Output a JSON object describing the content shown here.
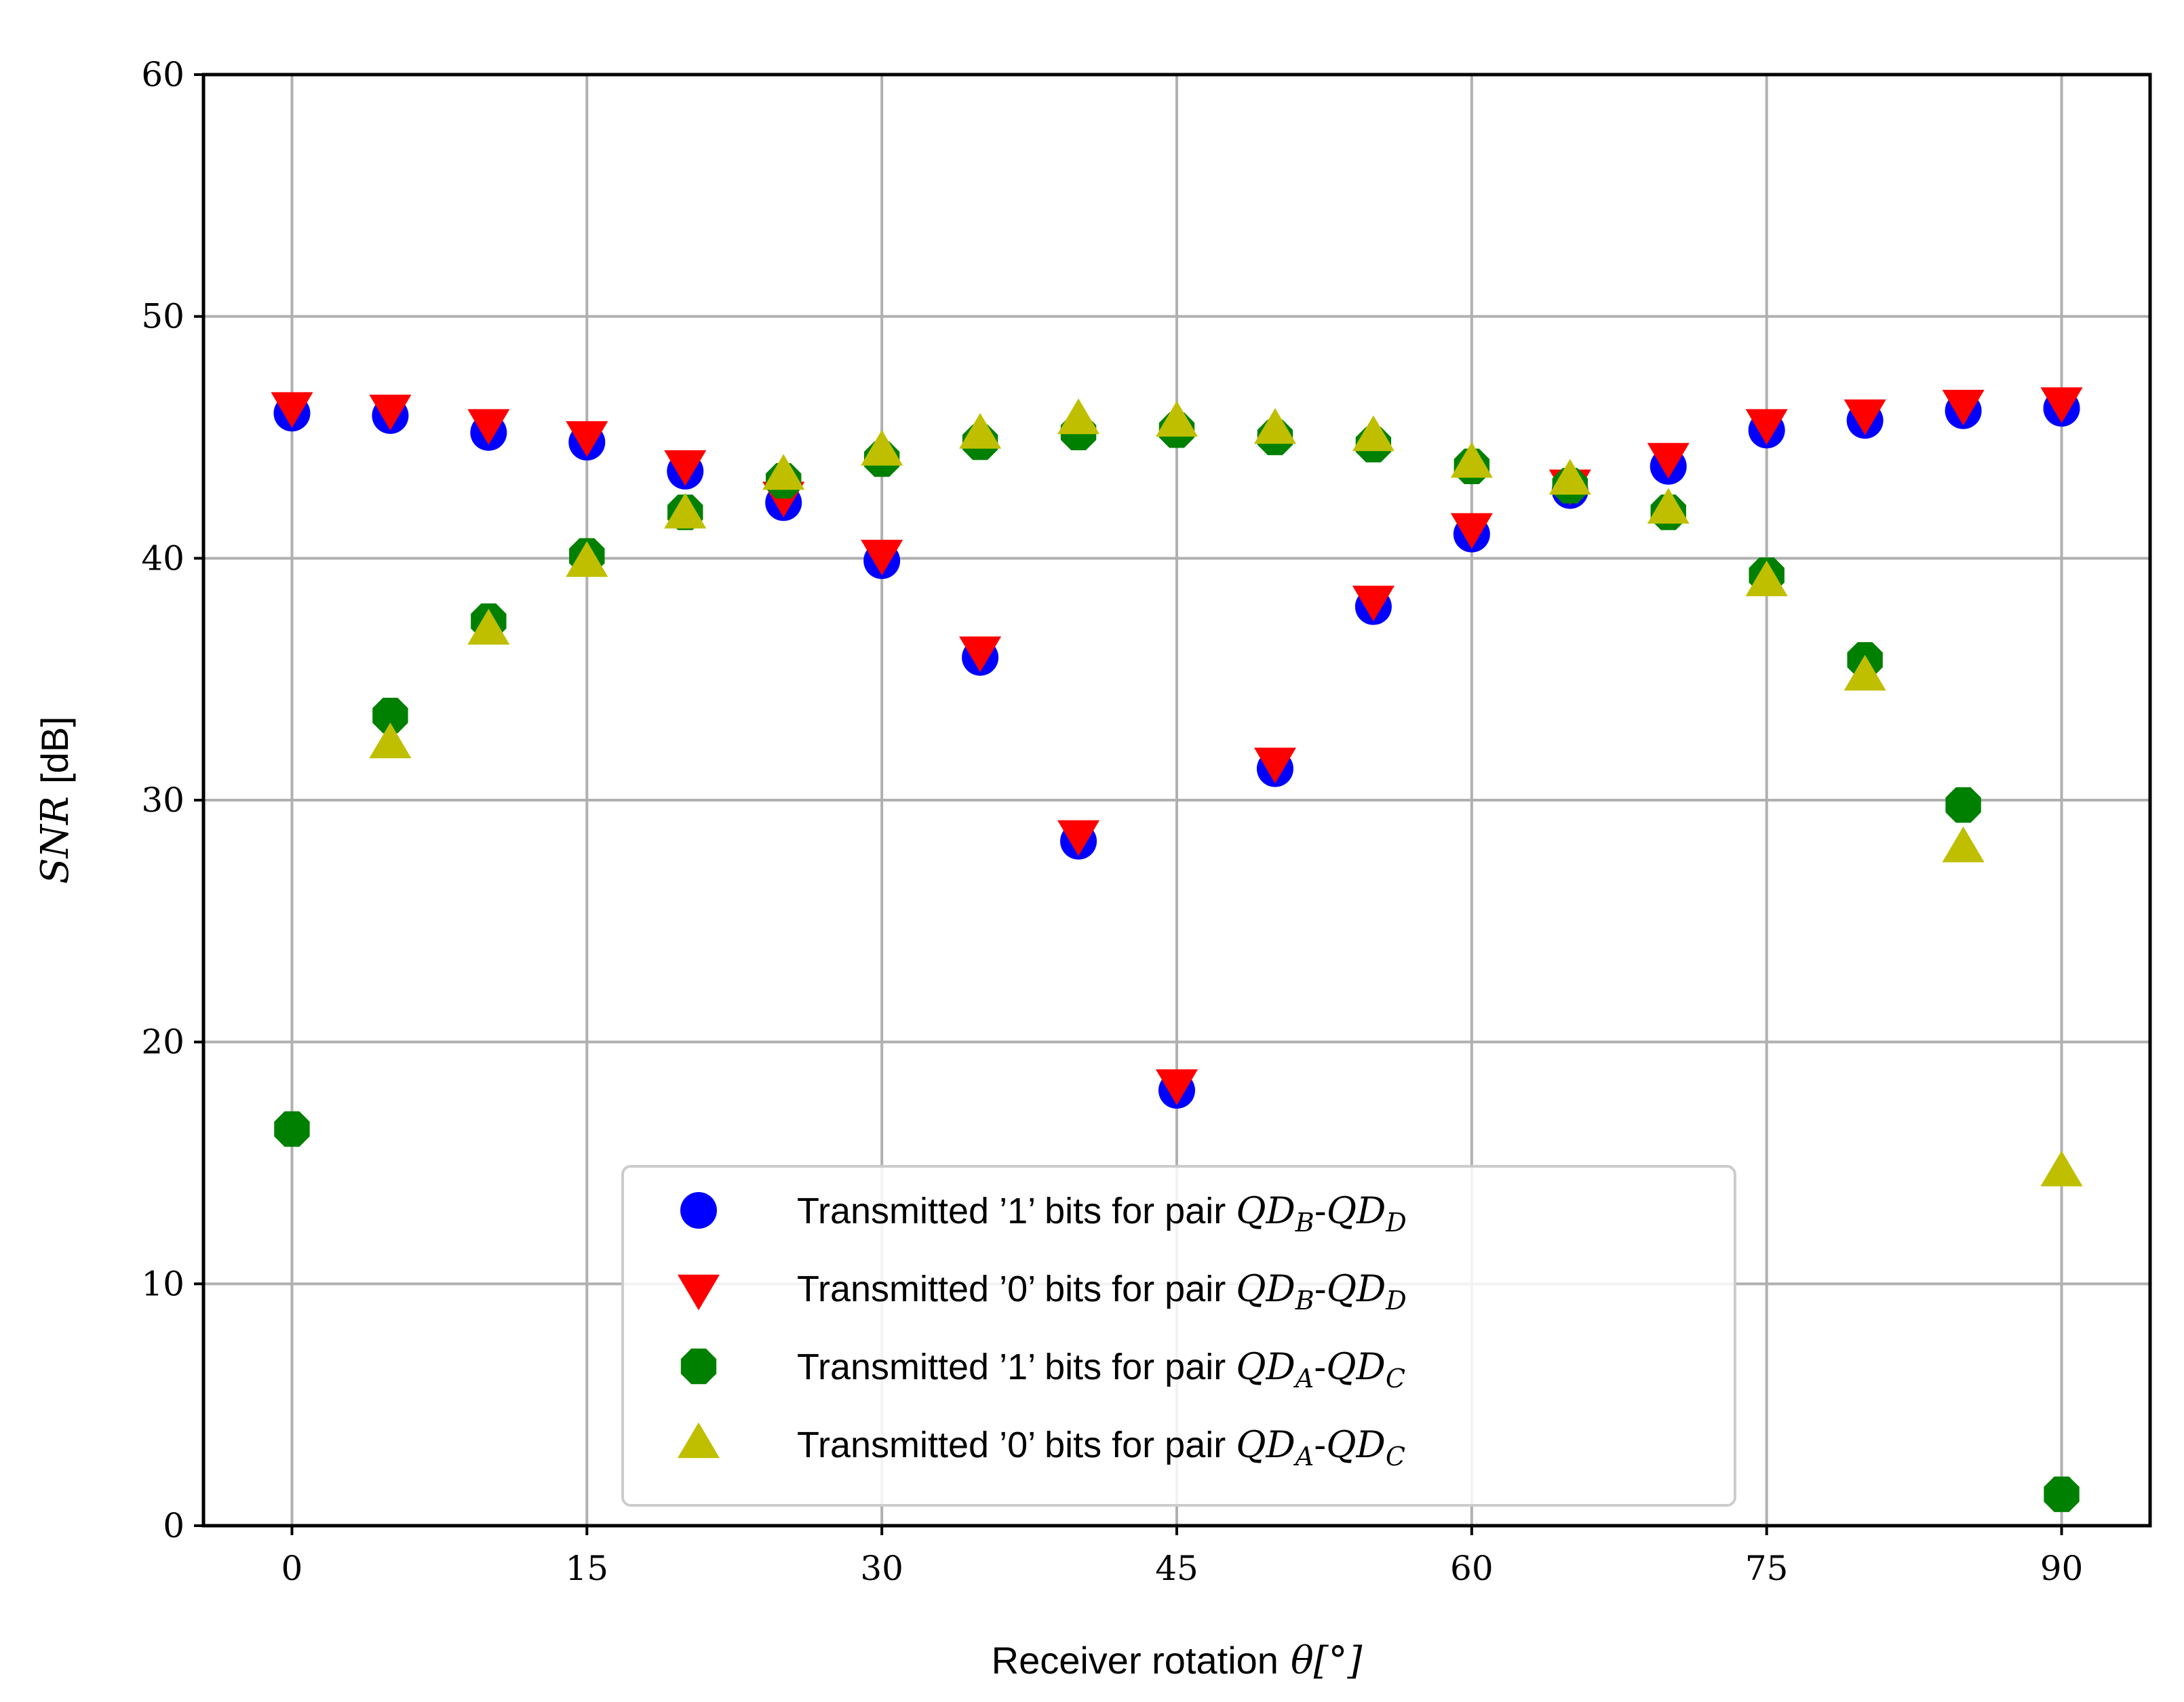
{
  "chart_data": {
    "type": "scatter",
    "title": "",
    "xlabel": "Receiver rotation",
    "xlabel_math": "θ[°]",
    "ylabel_math": "SNR",
    "ylabel_unit": "[dB]",
    "xlim": [
      -4.5,
      94.5
    ],
    "ylim": [
      0,
      60
    ],
    "xticks": [
      0,
      15,
      30,
      45,
      60,
      75,
      90
    ],
    "yticks": [
      0,
      10,
      20,
      30,
      40,
      50,
      60
    ],
    "grid": true,
    "legend_position": "bottom-center",
    "x": [
      0,
      5,
      10,
      15,
      20,
      25,
      30,
      35,
      40,
      45,
      50,
      55,
      60,
      65,
      70,
      75,
      80,
      85,
      90
    ],
    "series": [
      {
        "name": "Transmitted ’1’ bits for pair QD_B-QD_D",
        "label_text": "Transmitted ’1’ bits for pair",
        "pair": [
          "QD",
          "B",
          "QD",
          "D"
        ],
        "marker": "circle",
        "color": "#0000ff",
        "values": [
          46.0,
          45.9,
          45.2,
          44.8,
          43.6,
          42.3,
          39.9,
          35.9,
          28.3,
          18.0,
          31.3,
          38.0,
          41.0,
          42.8,
          43.8,
          45.3,
          45.7,
          46.1,
          46.2
        ]
      },
      {
        "name": "Transmitted ’0’ bits for pair QD_B-QD_D",
        "label_text": "Transmitted ’0’ bits for pair",
        "pair": [
          "QD",
          "B",
          "QD",
          "D"
        ],
        "marker": "triangle-down",
        "color": "#ff0000",
        "values": [
          46.3,
          46.2,
          45.6,
          45.1,
          43.9,
          42.6,
          40.2,
          36.2,
          28.6,
          18.3,
          31.6,
          38.3,
          41.3,
          43.1,
          44.2,
          45.6,
          46.0,
          46.4,
          46.5
        ]
      },
      {
        "name": "Transmitted ’1’ bits for pair QD_A-QD_C",
        "label_text": "Transmitted ’1’ bits for pair",
        "pair": [
          "QD",
          "A",
          "QD",
          "C"
        ],
        "marker": "octagon",
        "color": "#008000",
        "values": [
          16.4,
          33.5,
          37.4,
          40.1,
          41.9,
          43.2,
          44.1,
          44.8,
          45.2,
          45.3,
          45.0,
          44.7,
          43.8,
          43.0,
          41.9,
          39.3,
          35.8,
          29.8,
          1.3
        ]
      },
      {
        "name": "Transmitted ’0’ bits for pair QD_A-QD_C",
        "label_text": "Transmitted ’0’ bits for pair",
        "pair": [
          "QD",
          "A",
          "QD",
          "C"
        ],
        "marker": "triangle-up",
        "color": "#bfbf00",
        "values": [
          null,
          32.3,
          37.0,
          39.8,
          41.8,
          43.4,
          44.4,
          45.1,
          45.7,
          45.6,
          45.3,
          45.0,
          43.9,
          43.2,
          42.0,
          39.0,
          35.1,
          28.0,
          14.6
        ]
      }
    ]
  }
}
